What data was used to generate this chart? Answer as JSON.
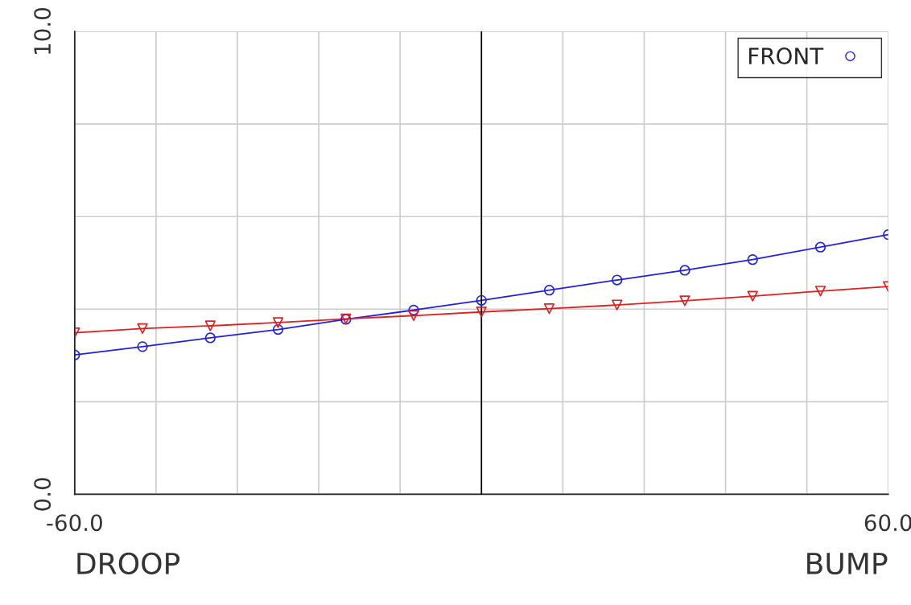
{
  "chart_data": {
    "type": "line",
    "x": [
      -60,
      -50,
      -40,
      -30,
      -20,
      -10,
      0,
      10,
      20,
      30,
      40,
      50,
      60
    ],
    "series": [
      {
        "name": "FRONT",
        "color": "#2020e0",
        "marker": "circle",
        "values": [
          3.01,
          3.19,
          3.38,
          3.56,
          3.78,
          3.98,
          4.19,
          4.41,
          4.63,
          4.84,
          5.07,
          5.34,
          5.61
        ]
      },
      {
        "color": "#e02020",
        "marker": "triangle",
        "values": [
          3.49,
          3.58,
          3.64,
          3.71,
          3.79,
          3.86,
          3.94,
          4.01,
          4.09,
          4.18,
          4.28,
          4.39,
          4.49
        ]
      }
    ],
    "xlim": [
      -60,
      60
    ],
    "xticks": [
      {
        "value": -60,
        "label": "-60.0"
      },
      {
        "value": -48,
        "label": null
      },
      {
        "value": -36,
        "label": null
      },
      {
        "value": -24,
        "label": null
      },
      {
        "value": -12,
        "label": null
      },
      {
        "value": 0,
        "label": null
      },
      {
        "value": 12,
        "label": null
      },
      {
        "value": 24,
        "label": null
      },
      {
        "value": 36,
        "label": null
      },
      {
        "value": 48,
        "label": null
      },
      {
        "value": 60,
        "label": "60.0"
      }
    ],
    "ylim": [
      0,
      10
    ],
    "yticks": [
      {
        "value": 0,
        "label": "0.0"
      },
      {
        "value": 2,
        "label": null
      },
      {
        "value": 4,
        "label": null
      },
      {
        "value": 6,
        "label": null
      },
      {
        "value": 8,
        "label": null
      },
      {
        "value": 10,
        "label": "10.0"
      }
    ],
    "ref_lines": [
      {
        "axis": "x",
        "value": 0,
        "color": "#000000"
      }
    ],
    "annotations": [
      "DROOP",
      "BUMP"
    ],
    "grid": true,
    "legend": "top right",
    "line_style": "solid"
  }
}
